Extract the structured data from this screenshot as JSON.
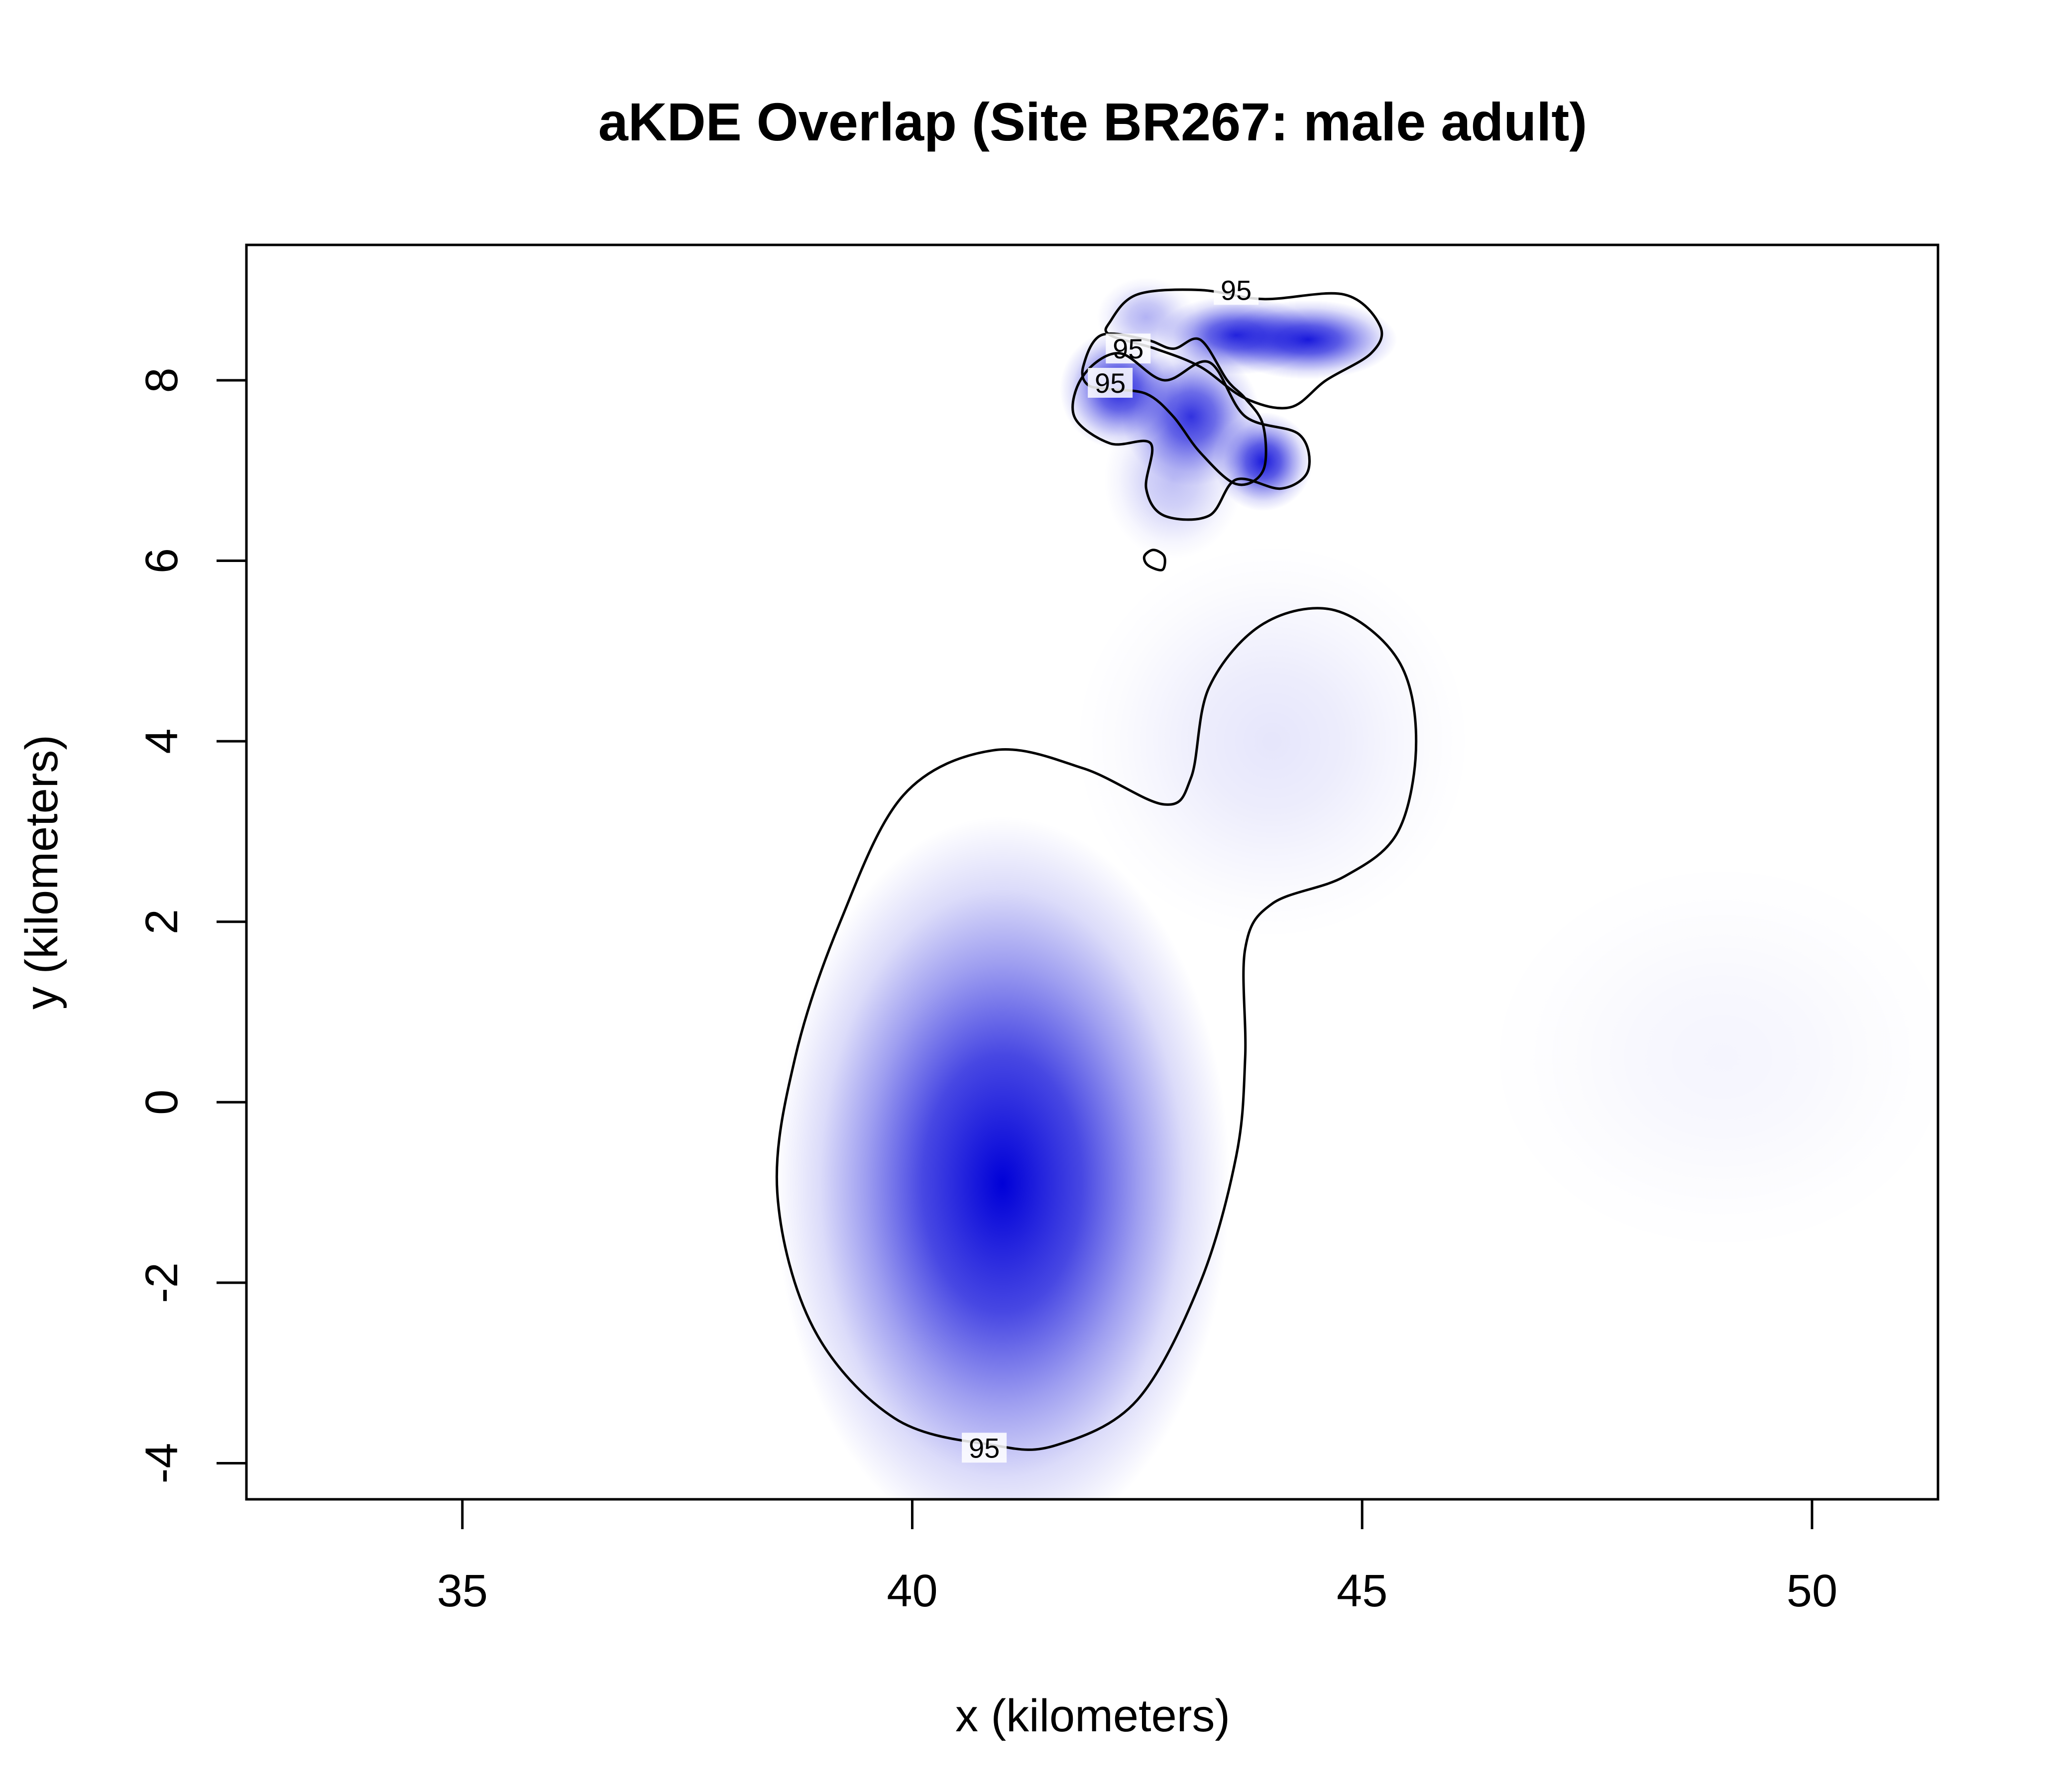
{
  "chart_data": {
    "type": "heatmap",
    "title": "aKDE Overlap (Site BR267: male adult)",
    "xlabel": "x (kilometers)",
    "ylabel": "y (kilometers)",
    "xlim": [
      32.6,
      51.4
    ],
    "ylim": [
      -4.4,
      9.5
    ],
    "x_ticks": [
      35,
      40,
      45,
      50
    ],
    "y_ticks": [
      -4,
      -2,
      0,
      2,
      4,
      6,
      8
    ],
    "fill_color": "#0000d8",
    "contour_color": "#000000",
    "contour_level_label": "95",
    "density_hotspots": [
      {
        "x": 41.0,
        "y": -0.9,
        "sx": 1.15,
        "sy": 1.85,
        "weight": 1.0
      },
      {
        "x": 44.0,
        "y": 4.0,
        "sx": 1.0,
        "sy": 1.0,
        "weight": 0.1
      },
      {
        "x": 49.0,
        "y": 0.5,
        "sx": 1.2,
        "sy": 1.0,
        "weight": 0.04
      },
      {
        "x": 42.3,
        "y": 7.9,
        "sx": 0.3,
        "sy": 0.3,
        "weight": 0.85
      },
      {
        "x": 43.1,
        "y": 7.6,
        "sx": 0.35,
        "sy": 0.35,
        "weight": 0.8
      },
      {
        "x": 43.9,
        "y": 7.1,
        "sx": 0.25,
        "sy": 0.25,
        "weight": 0.9
      },
      {
        "x": 43.6,
        "y": 8.5,
        "sx": 0.4,
        "sy": 0.2,
        "weight": 0.85
      },
      {
        "x": 44.4,
        "y": 8.45,
        "sx": 0.45,
        "sy": 0.2,
        "weight": 0.9
      },
      {
        "x": 42.6,
        "y": 8.7,
        "sx": 0.25,
        "sy": 0.2,
        "weight": 0.3
      },
      {
        "x": 42.9,
        "y": 6.9,
        "sx": 0.35,
        "sy": 0.4,
        "weight": 0.25
      }
    ],
    "contours": [
      {
        "name": "large-home-range-contour",
        "label_at": [
          40.8,
          -3.85
        ],
        "points": [
          [
            40.9,
            -3.8
          ],
          [
            39.8,
            -3.5
          ],
          [
            38.9,
            -2.5
          ],
          [
            38.5,
            -1.0
          ],
          [
            38.7,
            0.5
          ],
          [
            39.2,
            2.0
          ],
          [
            39.9,
            3.4
          ],
          [
            40.9,
            3.9
          ],
          [
            41.9,
            3.7
          ],
          [
            42.8,
            3.3
          ],
          [
            43.1,
            3.6
          ],
          [
            43.3,
            4.6
          ],
          [
            43.9,
            5.3
          ],
          [
            44.7,
            5.45
          ],
          [
            45.4,
            4.9
          ],
          [
            45.6,
            4.0
          ],
          [
            45.4,
            3.0
          ],
          [
            44.8,
            2.5
          ],
          [
            44.0,
            2.2
          ],
          [
            43.7,
            1.7
          ],
          [
            43.7,
            0.5
          ],
          [
            43.6,
            -0.6
          ],
          [
            43.2,
            -2.0
          ],
          [
            42.5,
            -3.3
          ],
          [
            41.6,
            -3.8
          ]
        ]
      },
      {
        "name": "north-top-contour",
        "label_at": [
          43.6,
          8.98
        ],
        "points": [
          [
            42.2,
            8.65
          ],
          [
            42.5,
            8.95
          ],
          [
            43.2,
            9.0
          ],
          [
            43.9,
            8.9
          ],
          [
            44.8,
            8.95
          ],
          [
            45.2,
            8.6
          ],
          [
            45.1,
            8.3
          ],
          [
            44.6,
            8.0
          ],
          [
            44.2,
            7.7
          ],
          [
            43.7,
            7.8
          ],
          [
            43.2,
            8.15
          ],
          [
            42.7,
            8.35
          ],
          [
            42.2,
            8.5
          ]
        ]
      },
      {
        "name": "north-middle-contour",
        "label_at": [
          42.4,
          8.33
        ],
        "points": [
          [
            41.9,
            8.15
          ],
          [
            42.1,
            8.5
          ],
          [
            42.6,
            8.45
          ],
          [
            42.9,
            8.35
          ],
          [
            43.2,
            8.45
          ],
          [
            43.5,
            8.0
          ],
          [
            43.7,
            7.8
          ],
          [
            43.9,
            7.5
          ],
          [
            43.9,
            7.0
          ],
          [
            43.6,
            6.85
          ],
          [
            43.2,
            7.2
          ],
          [
            42.9,
            7.6
          ],
          [
            42.6,
            7.85
          ],
          [
            42.2,
            7.9
          ],
          [
            41.95,
            7.95
          ]
        ]
      },
      {
        "name": "north-lower-contour",
        "label_at": [
          42.2,
          7.95
        ],
        "points": [
          [
            41.8,
            7.6
          ],
          [
            41.9,
            8.05
          ],
          [
            42.3,
            8.3
          ],
          [
            42.8,
            8.0
          ],
          [
            43.3,
            8.2
          ],
          [
            43.7,
            7.6
          ],
          [
            44.3,
            7.4
          ],
          [
            44.4,
            7.0
          ],
          [
            44.1,
            6.8
          ],
          [
            43.6,
            6.9
          ],
          [
            43.3,
            6.5
          ],
          [
            42.8,
            6.5
          ],
          [
            42.6,
            6.8
          ],
          [
            42.65,
            7.3
          ],
          [
            42.2,
            7.3
          ]
        ]
      },
      {
        "name": "small-island-contour",
        "label_at": null,
        "points": [
          [
            42.68,
            6.12
          ],
          [
            42.8,
            6.05
          ],
          [
            42.78,
            5.9
          ],
          [
            42.62,
            5.95
          ],
          [
            42.58,
            6.05
          ]
        ]
      }
    ]
  }
}
